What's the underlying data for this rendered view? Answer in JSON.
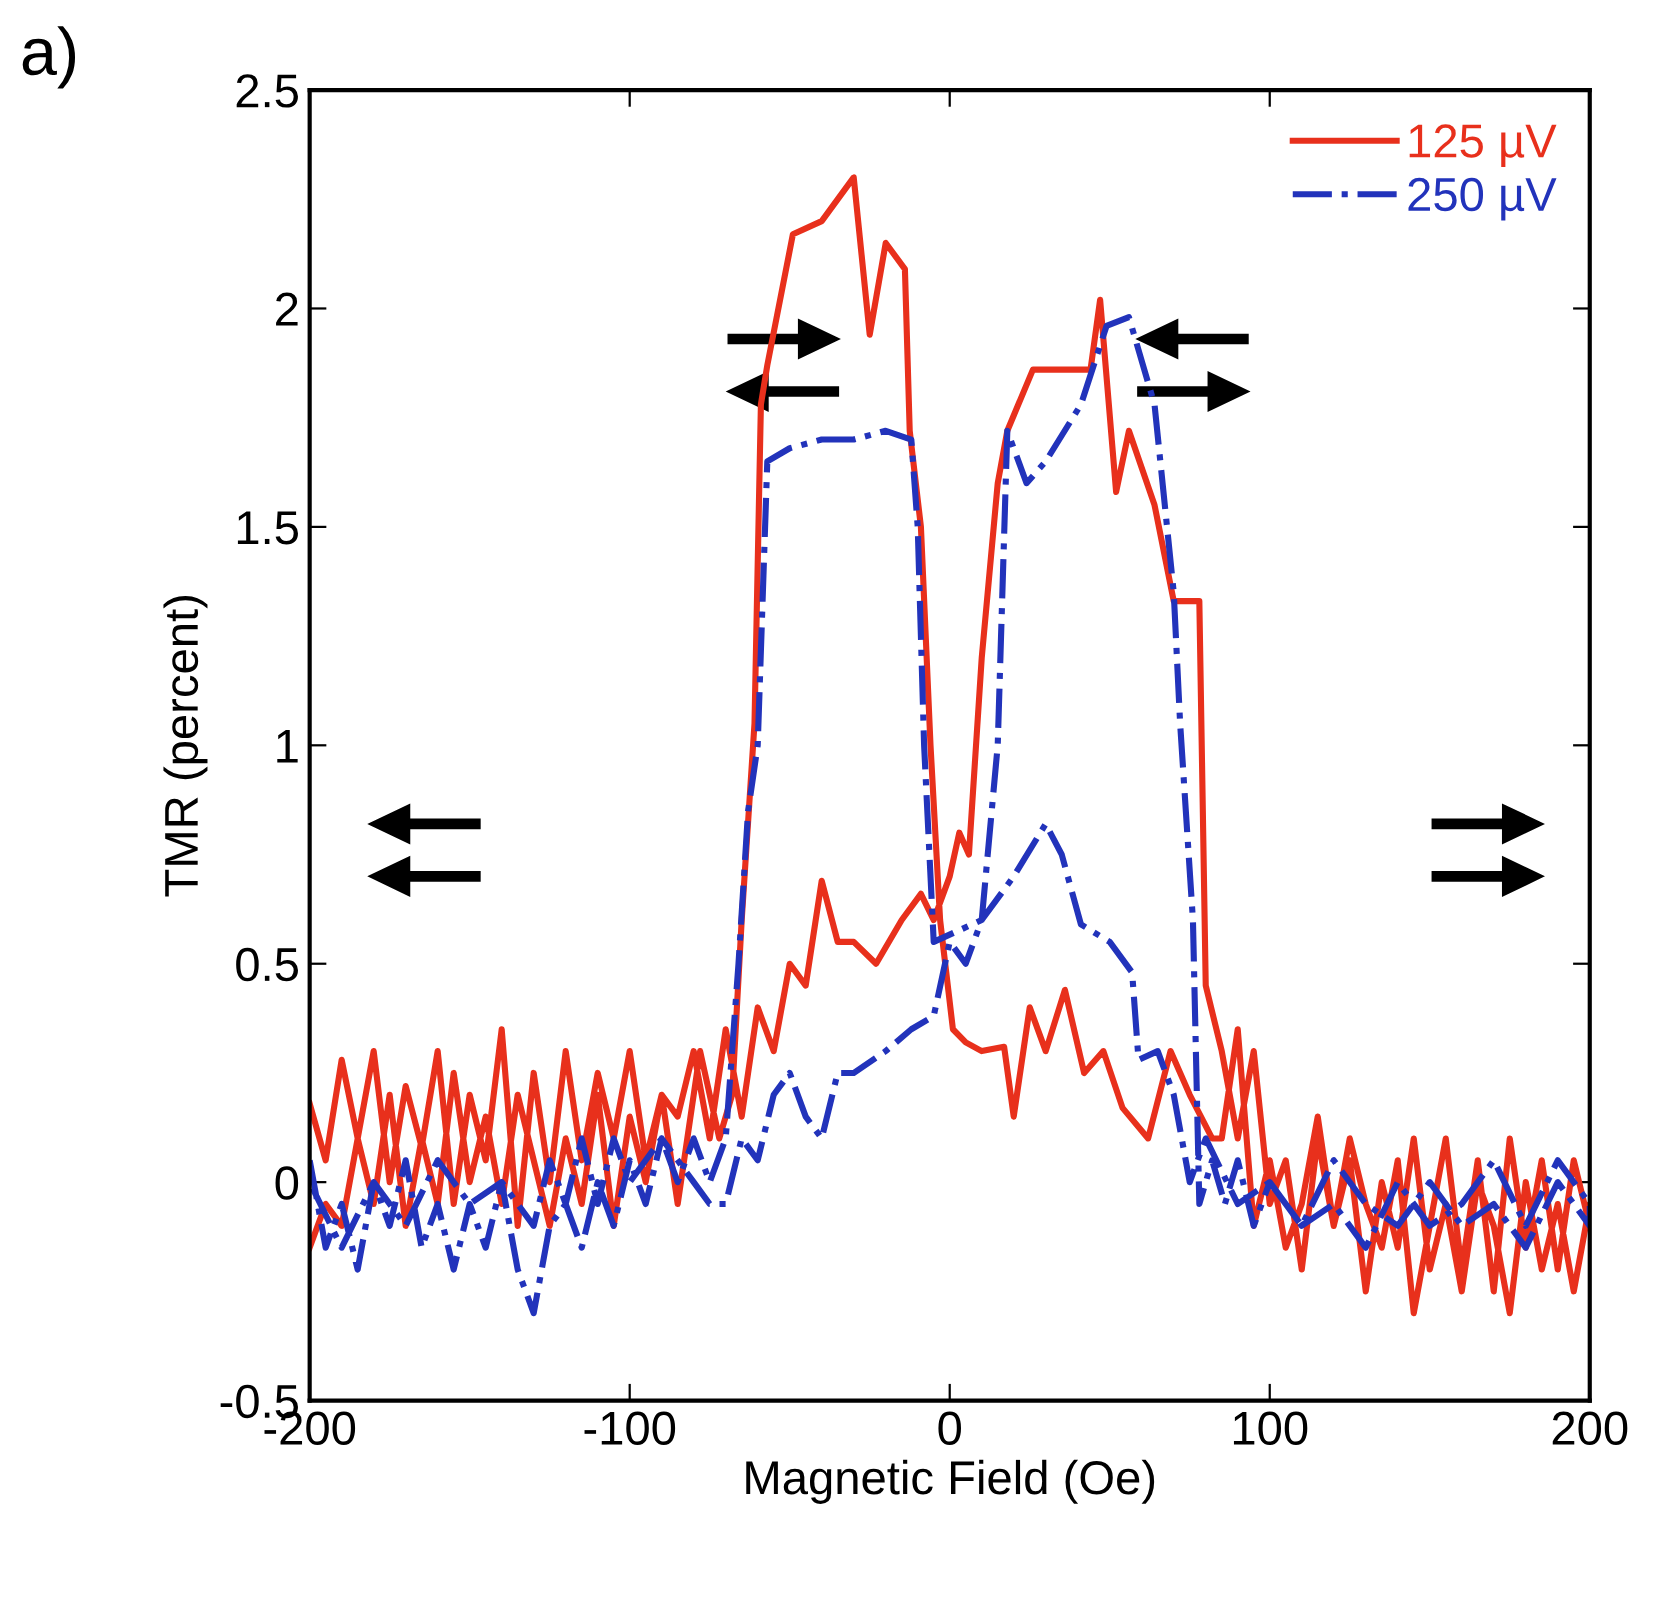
{
  "chart_data": {
    "type": "line",
    "xlabel": "Magnetic Field (Oe)",
    "ylabel": "TMR (percent)",
    "annotations": [
      "a)"
    ],
    "xlim": [
      -200,
      200
    ],
    "xticks": [
      -200,
      -100,
      0,
      100,
      200
    ],
    "ylim": [
      -0.5,
      2.5
    ],
    "yticks": [
      -0.5,
      0,
      0.5,
      1,
      1.5,
      2,
      2.5
    ],
    "grid": false,
    "legend": "top right",
    "marker": "none",
    "series": [
      {
        "name": "125 µV",
        "color": "#e8301c",
        "line_style": "solid",
        "x": [
          -200,
          -195,
          -190,
          -185,
          -180,
          -175,
          -170,
          -165,
          -160,
          -155,
          -150,
          -145,
          -140,
          -135,
          -130,
          -125,
          -120,
          -115,
          -110,
          -105,
          -100,
          -95,
          -90,
          -85,
          -80,
          -75,
          -70,
          -65,
          -60,
          -55,
          -50,
          -45,
          -40,
          -35,
          -30,
          -23,
          -15,
          -9,
          -5,
          0,
          3,
          6,
          10,
          15,
          18,
          26,
          44,
          47,
          52,
          56,
          64,
          70,
          78,
          80,
          85,
          90,
          95,
          100,
          105,
          110,
          115,
          120,
          125,
          130,
          135,
          140,
          145,
          150,
          155,
          160,
          165,
          170,
          175,
          180,
          185,
          190,
          195,
          200,
          200,
          195,
          190,
          185,
          180,
          175,
          170,
          165,
          160,
          155,
          150,
          145,
          140,
          135,
          130,
          125,
          120,
          115,
          110,
          105,
          100,
          95,
          90,
          85,
          82,
          75,
          69,
          62,
          54,
          48,
          42,
          36,
          30,
          25,
          20,
          17,
          10,
          5,
          1,
          -3,
          -6,
          -9,
          -12.5,
          -14,
          -20,
          -25,
          -30,
          -40,
          -49,
          -57,
          -59,
          -61,
          -65,
          -68,
          -72,
          -78,
          -85,
          -90,
          -95,
          -100,
          -105,
          -110,
          -115,
          -120,
          -125,
          -130,
          -135,
          -140,
          -145,
          -150,
          -155,
          -160,
          -165,
          -170,
          -175,
          -180,
          -185,
          -190,
          -195,
          -200
        ],
        "values": [
          0.18,
          0.05,
          0.28,
          0.1,
          0.3,
          0.0,
          0.22,
          0.08,
          0.3,
          -0.05,
          0.2,
          0.05,
          0.35,
          -0.1,
          0.25,
          0.0,
          0.3,
          0.05,
          0.25,
          0.1,
          0.3,
          0.05,
          0.2,
          0.15,
          0.3,
          0.1,
          0.35,
          0.15,
          0.4,
          0.3,
          0.5,
          0.45,
          0.69,
          0.55,
          0.55,
          0.5,
          0.6,
          0.66,
          0.6,
          0.7,
          0.8,
          0.75,
          1.2,
          1.6,
          1.72,
          1.86,
          1.86,
          2.02,
          1.58,
          1.72,
          1.55,
          1.33,
          1.33,
          0.45,
          0.3,
          0.1,
          0.3,
          -0.05,
          0.05,
          -0.2,
          0.1,
          -0.1,
          0.05,
          -0.25,
          0.0,
          -0.15,
          0.1,
          -0.2,
          -0.05,
          -0.25,
          0.0,
          -0.1,
          -0.3,
          0.0,
          -0.2,
          -0.05,
          -0.25,
          -0.05,
          -0.1,
          0.05,
          -0.2,
          0.05,
          -0.15,
          0.1,
          -0.25,
          0.05,
          -0.2,
          0.1,
          -0.1,
          -0.3,
          0.05,
          -0.15,
          -0.05,
          0.1,
          -0.1,
          0.15,
          -0.05,
          -0.15,
          0.05,
          -0.1,
          0.35,
          0.1,
          0.1,
          0.2,
          0.3,
          0.1,
          0.17,
          0.3,
          0.25,
          0.44,
          0.3,
          0.4,
          0.15,
          0.31,
          0.3,
          0.32,
          0.35,
          0.6,
          1.0,
          1.5,
          1.72,
          2.09,
          2.15,
          1.94,
          2.3,
          2.2,
          2.17,
          1.87,
          1.78,
          1.05,
          0.6,
          0.2,
          0.1,
          0.3,
          -0.05,
          0.2,
          0.0,
          0.15,
          -0.1,
          0.2,
          -0.05,
          0.1,
          -0.1,
          0.05,
          0.2,
          -0.05,
          0.15,
          0.0,
          0.25,
          -0.05,
          0.1,
          -0.1,
          0.2,
          -0.05,
          0.1,
          -0.1,
          -0.05,
          -0.15
        ]
      },
      {
        "name": "250 µV",
        "color": "#2233bb",
        "line_style": "dashdot",
        "x": [
          -200,
          -195,
          -190,
          -185,
          -180,
          -175,
          -170,
          -165,
          -160,
          -155,
          -150,
          -145,
          -140,
          -135,
          -130,
          -125,
          -120,
          -115,
          -110,
          -105,
          -100,
          -95,
          -90,
          -85,
          -80,
          -75,
          -70,
          -65,
          -60,
          -55,
          -50,
          -45,
          -40,
          -35,
          -30,
          -20,
          -12,
          -5,
          0,
          5,
          10,
          15,
          18,
          24,
          30,
          41,
          49,
          56,
          64,
          70,
          72,
          76,
          78,
          82,
          86,
          90,
          95,
          100,
          110,
          120,
          130,
          140,
          150,
          160,
          170,
          180,
          190,
          200,
          200,
          190,
          180,
          170,
          160,
          150,
          140,
          130,
          120,
          110,
          100,
          90,
          80,
          75,
          70,
          65,
          59,
          57,
          50,
          41,
          35,
          30,
          20,
          10,
          1,
          -5,
          -8,
          -10,
          -12,
          -20,
          -30,
          -40,
          -50,
          -57,
          -60,
          -63,
          -66,
          -70,
          -75,
          -80,
          -85,
          -90,
          -95,
          -100,
          -105,
          -110,
          -115,
          -120,
          -125,
          -130,
          -140,
          -150,
          -160,
          -170,
          -180,
          -190,
          -200
        ],
        "values": [
          0.05,
          -0.15,
          -0.05,
          -0.2,
          0.0,
          -0.1,
          0.05,
          -0.15,
          -0.05,
          -0.2,
          -0.05,
          -0.15,
          0.0,
          -0.2,
          -0.3,
          -0.1,
          -0.05,
          -0.15,
          0.0,
          -0.1,
          0.05,
          -0.05,
          0.1,
          0.05,
          0.0,
          -0.05,
          -0.05,
          0.1,
          0.05,
          0.2,
          0.25,
          0.15,
          0.1,
          0.25,
          0.25,
          0.3,
          0.35,
          0.38,
          0.55,
          0.5,
          0.6,
          1.0,
          1.72,
          1.6,
          1.65,
          1.78,
          1.96,
          1.98,
          1.78,
          1.35,
          1.05,
          0.6,
          -0.05,
          0.05,
          -0.05,
          0.05,
          -0.1,
          0.0,
          -0.1,
          -0.05,
          -0.15,
          0.0,
          -0.1,
          -0.05,
          0.05,
          -0.1,
          0.05,
          -0.05,
          -0.1,
          0.0,
          -0.15,
          -0.05,
          -0.1,
          0.0,
          -0.1,
          -0.05,
          0.05,
          -0.1,
          0.0,
          -0.05,
          0.1,
          0.0,
          0.2,
          0.3,
          0.28,
          0.48,
          0.55,
          0.59,
          0.75,
          0.82,
          0.7,
          0.6,
          0.57,
          0.55,
          1.0,
          1.5,
          1.7,
          1.72,
          1.7,
          1.7,
          1.68,
          1.65,
          1.0,
          0.85,
          0.5,
          0.1,
          0.0,
          0.1,
          0.0,
          0.1,
          0.05,
          0.0,
          0.1,
          -0.05,
          0.1,
          -0.05,
          0.05,
          -0.1,
          0.0,
          -0.05,
          0.05,
          -0.1,
          0.0,
          -0.15,
          0.0
        ]
      }
    ]
  }
}
